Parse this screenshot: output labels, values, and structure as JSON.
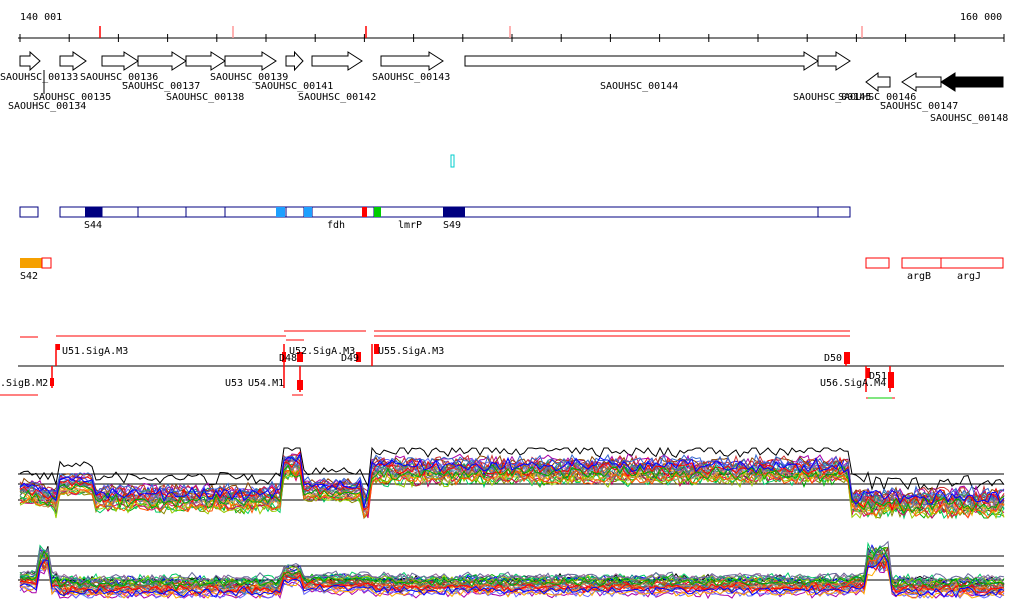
{
  "coordinates": {
    "start": "140 001",
    "end": "160 000"
  },
  "genes": [
    "SAOUHSC_00133",
    "SAOUHSC_00134",
    "SAOUHSC_00135",
    "SAOUHSC_00136",
    "SAOUHSC_00137",
    "SAOUHSC_00138",
    "SAOUHSC_00139",
    "SAOUHSC_00141",
    "SAOUHSC_00142",
    "SAOUHSC_00143",
    "SAOUHSC_00144",
    "SAOUHSC_00145",
    "SAOUHSC_00146",
    "SAOUHSC_00147",
    "SAOUHSC_00148"
  ],
  "segments_blue": [
    "S44",
    "fdh",
    "lmrP",
    "S49"
  ],
  "segments_red": [
    "S42",
    "argB",
    "argJ"
  ],
  "regulatory": [
    "U51.SigA.M3",
    "U52.SigA.M3",
    "U55.SigA.M3",
    "D48",
    "D49",
    "D50",
    "D51",
    ".SigB.M2",
    "U53",
    "U54.M1",
    "U56.SigA.M4"
  ],
  "colors": {
    "gene_fill_plus": "#ffffff",
    "gene_fill_black": "#000000",
    "segment_blue": "#000080",
    "segment_light": "#1ea0ff",
    "segment_red": "#ff0000",
    "segment_orange": "#f5a000",
    "segment_green": "#00cc00"
  }
}
